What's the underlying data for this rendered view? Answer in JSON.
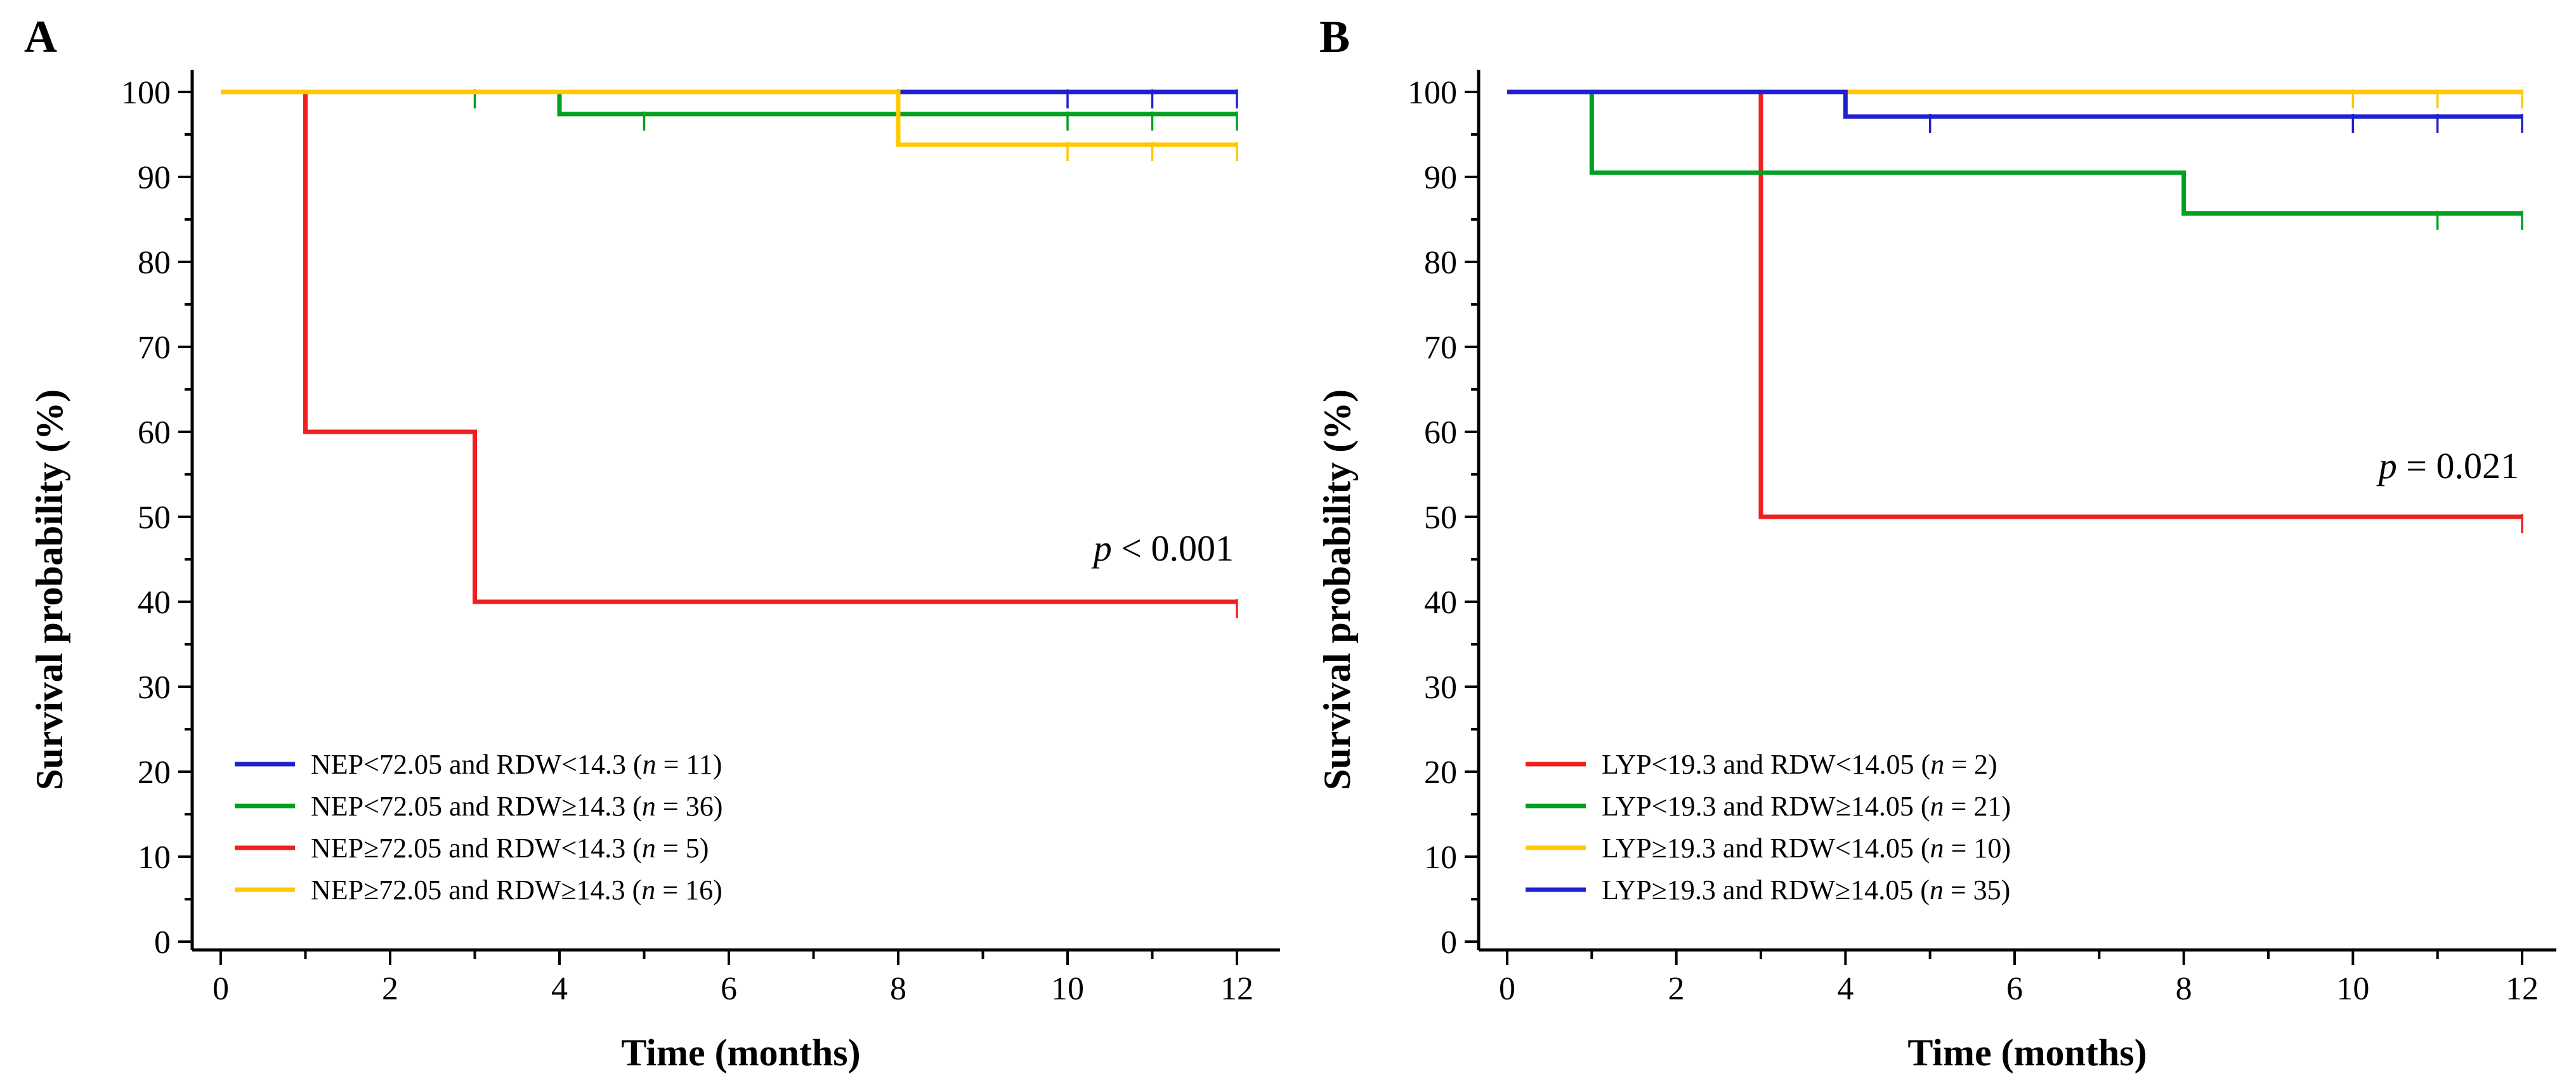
{
  "panels": [
    {
      "letter": "A",
      "ylabel": "Survival probability (%)",
      "xlabel": "Time (months)",
      "pvalue": {
        "italic": "p",
        "rest": " < 0.001"
      },
      "chart_data": {
        "type": "line",
        "step": "post",
        "xlim": [
          0,
          12
        ],
        "ylim": [
          0,
          100
        ],
        "x_ticks": [
          0,
          2,
          4,
          6,
          8,
          10,
          12
        ],
        "y_ticks": [
          0,
          10,
          20,
          30,
          40,
          50,
          60,
          70,
          80,
          90,
          100
        ],
        "legend_position": "bottom-left",
        "series": [
          {
            "name": "NEP<72.05 and RDW<14.3",
            "n": "n",
            "n_value": "11",
            "color": "#2020d0",
            "times": [
              0,
              8,
              12
            ],
            "survival": [
              100,
              100,
              100
            ],
            "censored": [
              8,
              10,
              11,
              12
            ]
          },
          {
            "name": "NEP<72.05 and RDW≥14.3",
            "n": "n",
            "n_value": "36",
            "color": "#00a020",
            "times": [
              0,
              4,
              12
            ],
            "survival": [
              100,
              97.4,
              97.4
            ],
            "censored": [
              3,
              5,
              10,
              11,
              12
            ]
          },
          {
            "name": "NEP≥72.05 and RDW<14.3",
            "n": "n",
            "n_value": "5",
            "color": "#f02020",
            "times": [
              0,
              1,
              3,
              12
            ],
            "survival": [
              100,
              60,
              40,
              40
            ],
            "censored": [
              12
            ]
          },
          {
            "name": "NEP≥72.05 and RDW≥14.3",
            "n": "n",
            "n_value": "16",
            "color": "#ffc800",
            "times": [
              0,
              8,
              12
            ],
            "survival": [
              100,
              93.8,
              93.8
            ],
            "censored": [
              10,
              11,
              12
            ]
          }
        ]
      }
    },
    {
      "letter": "B",
      "ylabel": "Survival probability (%)",
      "xlabel": "Time (months)",
      "pvalue": {
        "italic": "p",
        "rest": " = 0.021"
      },
      "chart_data": {
        "type": "line",
        "step": "post",
        "xlim": [
          0,
          12
        ],
        "ylim": [
          0,
          100
        ],
        "x_ticks": [
          0,
          2,
          4,
          6,
          8,
          10,
          12
        ],
        "y_ticks": [
          0,
          10,
          20,
          30,
          40,
          50,
          60,
          70,
          80,
          90,
          100
        ],
        "legend_position": "bottom-left",
        "series": [
          {
            "name": "LYP<19.3 and RDW<14.05",
            "n": "n",
            "n_value": "2",
            "color": "#f02020",
            "times": [
              0,
              3,
              12
            ],
            "survival": [
              100,
              50,
              50
            ],
            "censored": [
              12
            ]
          },
          {
            "name": "LYP<19.3 and RDW≥14.05",
            "n": "n",
            "n_value": "21",
            "color": "#00a020",
            "times": [
              0,
              1,
              8,
              12
            ],
            "survival": [
              100,
              90.5,
              85.7,
              85.7
            ],
            "censored": [
              11,
              12
            ]
          },
          {
            "name": "LYP≥19.3 and RDW<14.05",
            "n": "n",
            "n_value": "10",
            "color": "#ffc800",
            "times": [
              0,
              12
            ],
            "survival": [
              100,
              100
            ],
            "censored": [
              10,
              11,
              12
            ]
          },
          {
            "name": "LYP≥19.3 and RDW≥14.05",
            "n": "n",
            "n_value": "35",
            "color": "#2020d0",
            "times": [
              0,
              4,
              12
            ],
            "survival": [
              100,
              97.1,
              97.1
            ],
            "censored": [
              5,
              10,
              11,
              12
            ]
          }
        ]
      }
    }
  ]
}
